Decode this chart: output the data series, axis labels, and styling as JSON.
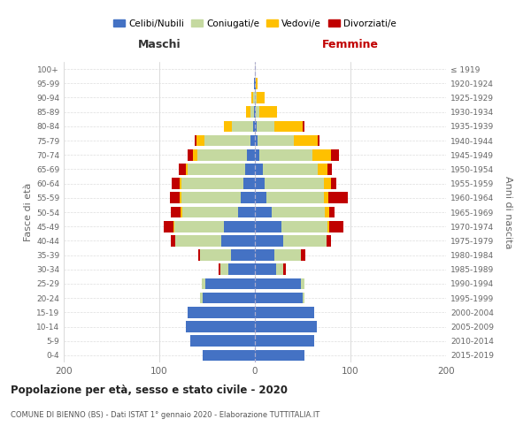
{
  "age_groups_bt": [
    "0-4",
    "5-9",
    "10-14",
    "15-19",
    "20-24",
    "25-29",
    "30-34",
    "35-39",
    "40-44",
    "45-49",
    "50-54",
    "55-59",
    "60-64",
    "65-69",
    "70-74",
    "75-79",
    "80-84",
    "85-89",
    "90-94",
    "95-99",
    "100+"
  ],
  "birth_years_bt": [
    "2015-2019",
    "2010-2014",
    "2005-2009",
    "2000-2004",
    "1995-1999",
    "1990-1994",
    "1985-1989",
    "1980-1984",
    "1975-1979",
    "1970-1974",
    "1965-1969",
    "1960-1964",
    "1955-1959",
    "1950-1954",
    "1945-1949",
    "1940-1944",
    "1935-1939",
    "1930-1934",
    "1925-1929",
    "1920-1924",
    "≤ 1919"
  ],
  "maschi_celibi": [
    55,
    68,
    72,
    70,
    55,
    52,
    28,
    25,
    35,
    32,
    18,
    15,
    12,
    10,
    8,
    5,
    2,
    1,
    0,
    1,
    0
  ],
  "maschi_coniugati": [
    0,
    0,
    0,
    0,
    2,
    4,
    8,
    32,
    48,
    52,
    58,
    62,
    65,
    60,
    52,
    48,
    22,
    4,
    2,
    0,
    0
  ],
  "maschi_vedovi": [
    0,
    0,
    0,
    0,
    0,
    0,
    0,
    0,
    0,
    1,
    2,
    2,
    2,
    2,
    5,
    8,
    8,
    4,
    2,
    0,
    0
  ],
  "maschi_divorziati": [
    0,
    0,
    0,
    0,
    0,
    0,
    2,
    2,
    5,
    10,
    10,
    10,
    8,
    8,
    5,
    2,
    0,
    0,
    0,
    0,
    0
  ],
  "femmine_nubili": [
    52,
    62,
    65,
    62,
    50,
    48,
    22,
    20,
    30,
    28,
    18,
    12,
    10,
    8,
    5,
    3,
    2,
    1,
    0,
    1,
    0
  ],
  "femmine_coniugate": [
    0,
    0,
    0,
    0,
    2,
    4,
    8,
    28,
    45,
    48,
    55,
    60,
    62,
    58,
    55,
    38,
    18,
    4,
    2,
    0,
    0
  ],
  "femmine_vedove": [
    0,
    0,
    0,
    0,
    0,
    0,
    0,
    0,
    0,
    2,
    5,
    5,
    8,
    10,
    20,
    25,
    30,
    18,
    8,
    2,
    0
  ],
  "femmine_divorziate": [
    0,
    0,
    0,
    0,
    0,
    0,
    2,
    5,
    5,
    15,
    5,
    20,
    5,
    5,
    8,
    2,
    2,
    0,
    0,
    0,
    0
  ],
  "colors": {
    "celibi": "#4472c4",
    "coniugati": "#c5d9a0",
    "vedovi": "#ffc000",
    "divorziati": "#c00000"
  },
  "legend_labels": [
    "Celibi/Nubili",
    "Coniugati/e",
    "Vedovi/e",
    "Divorziati/e"
  ],
  "title": "Popolazione per età, sesso e stato civile - 2020",
  "subtitle": "COMUNE DI BIENNO (BS) - Dati ISTAT 1° gennaio 2020 - Elaborazione TUTTITALIA.IT",
  "maschi_label": "Maschi",
  "femmine_label": "Femmine",
  "ylabel_left": "Fasce di età",
  "ylabel_right": "Anni di nascita",
  "xlim": 200,
  "bg_color": "#ffffff",
  "axis_color": "#666666",
  "grid_color": "#cccccc"
}
